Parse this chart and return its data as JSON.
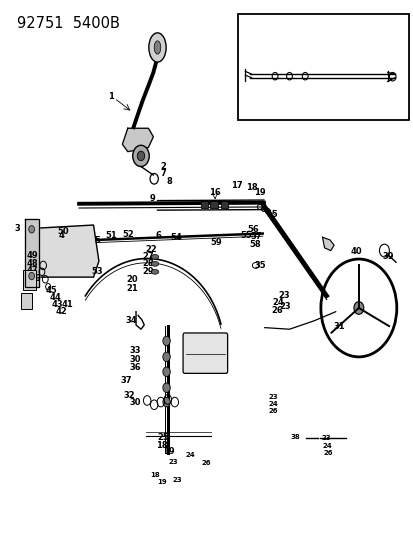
{
  "title": "92751  5400B",
  "bg_color": "#ffffff",
  "line_color": "#000000",
  "title_fontsize": 11,
  "label_fontsize": 6.0,
  "fig_width": 4.14,
  "fig_height": 5.33,
  "dpi": 100
}
